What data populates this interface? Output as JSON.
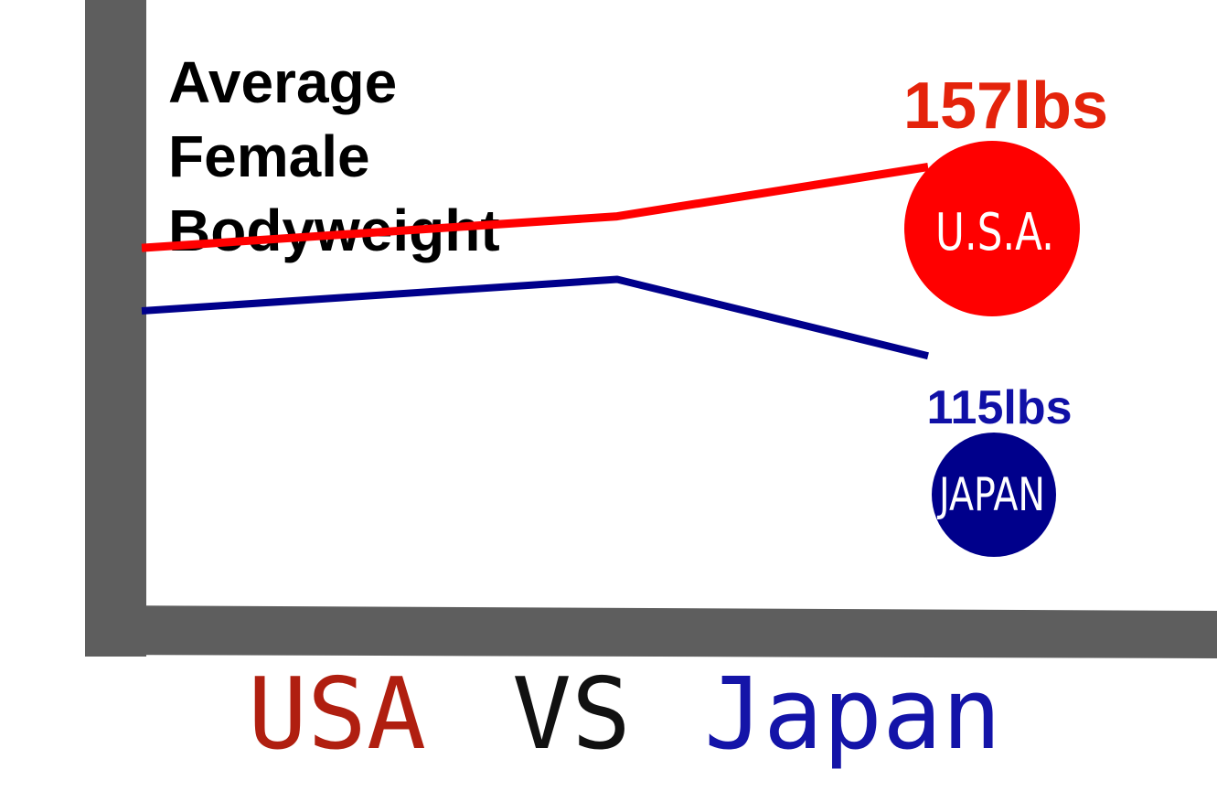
{
  "chart_data": {
    "type": "line",
    "title_lines": [
      "Average",
      "Female",
      "Bodyweight"
    ],
    "series": [
      {
        "name": "U.S.A.",
        "color": "#ff0000",
        "end_value_label": "157lbs",
        "end_value": 157,
        "values": [
          139,
          146,
          157
        ]
      },
      {
        "name": "JAPAN",
        "color": "#00008b",
        "end_value_label": "115lbs",
        "end_value": 115,
        "values": [
          125,
          132,
          115
        ]
      }
    ],
    "label_colors": {
      "usa": "#e4230b",
      "japan": "#1010a6"
    },
    "bubble_text_colors": [
      "#ffffff",
      "#ffffff"
    ],
    "axis_color": "#5e5e5e",
    "grid": false,
    "ylim": [
      60,
      190
    ]
  },
  "caption": {
    "left": "USA",
    "middle": "VS",
    "right": "Japan",
    "left_color": "#b01f10",
    "middle_color": "#111111",
    "right_color": "#1414a8"
  }
}
